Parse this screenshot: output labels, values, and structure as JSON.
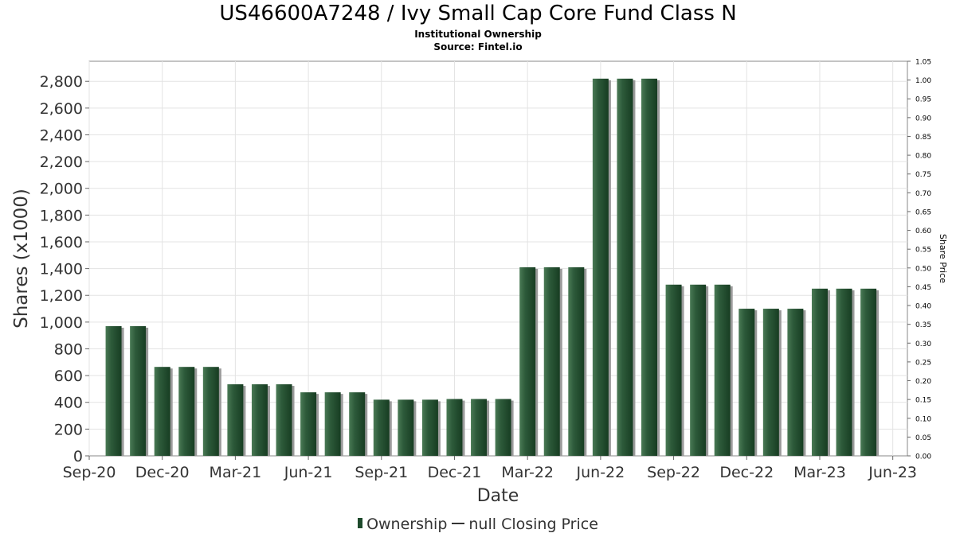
{
  "chart_data": {
    "type": "bar",
    "title": "US46600A7248 / Ivy Small Cap Core Fund Class N",
    "subtitle": "Institutional Ownership",
    "source": "Source: Fintel.io",
    "xlabel": "Date",
    "ylabel": "Shares (x1000)",
    "y2label": "Share Price",
    "ylim": [
      0,
      2950
    ],
    "yticks": [
      0,
      200,
      400,
      600,
      800,
      1000,
      1200,
      1400,
      1600,
      1800,
      2000,
      2200,
      2400,
      2600,
      2800
    ],
    "ytick_labels": [
      "0",
      "200",
      "400",
      "600",
      "800",
      "1,000",
      "1,200",
      "1,400",
      "1,600",
      "1,800",
      "2,000",
      "2,200",
      "2,400",
      "2,600",
      "2,800"
    ],
    "y2lim": [
      0,
      1.05
    ],
    "y2tick_labels": [
      "0.00",
      "0.05",
      "0.10",
      "0.15",
      "0.20",
      "0.25",
      "0.30",
      "0.35",
      "0.40",
      "0.45",
      "0.50",
      "0.55",
      "0.60",
      "0.65",
      "0.70",
      "0.75",
      "0.80",
      "0.85",
      "0.90",
      "0.95",
      "1.00",
      "1.05"
    ],
    "xticks": [
      "Sep-20",
      "Dec-20",
      "Mar-21",
      "Jun-21",
      "Sep-21",
      "Dec-21",
      "Mar-22",
      "Jun-22",
      "Sep-22",
      "Dec-22",
      "Mar-23",
      "Jun-23"
    ],
    "xlim": [
      0,
      33.6
    ],
    "grid": true,
    "legend_position": "bottom",
    "series": [
      {
        "name": "Ownership",
        "color": "#1e4a2c",
        "x": [
          1,
          2,
          3,
          4,
          5,
          6,
          7,
          8,
          9,
          10,
          11,
          12,
          13,
          14,
          15,
          16,
          17,
          18,
          19,
          20,
          21,
          22,
          23,
          24,
          25,
          26,
          27,
          28,
          29,
          30,
          31,
          32
        ],
        "values": [
          970,
          970,
          665,
          665,
          665,
          535,
          535,
          535,
          475,
          475,
          475,
          420,
          420,
          420,
          425,
          425,
          425,
          1410,
          1410,
          1410,
          2820,
          2820,
          2820,
          1280,
          1280,
          1280,
          1100,
          1100,
          1100,
          1250,
          1250,
          1250
        ]
      }
    ],
    "legend": {
      "bar_label": "Ownership",
      "line_label": "null Closing Price"
    }
  }
}
